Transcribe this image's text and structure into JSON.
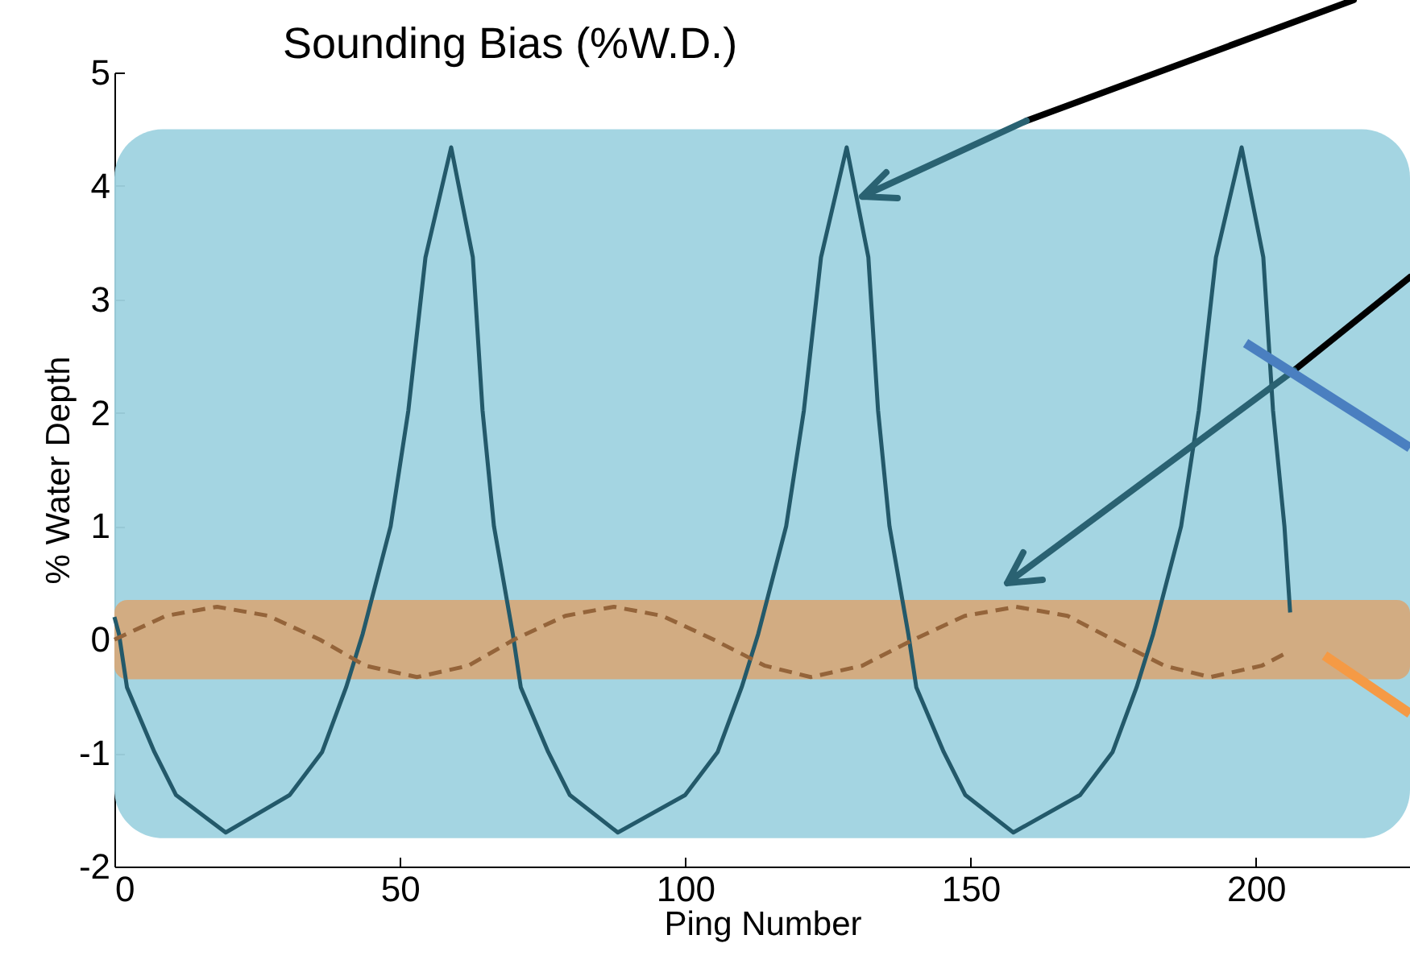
{
  "chart_data": {
    "type": "line",
    "title": "Sounding Bias (%W.D.)",
    "xlabel": "Ping Number",
    "ylabel": "% Water Depth",
    "xlim": [
      0,
      227
    ],
    "xticks": [
      0,
      50,
      100,
      150,
      200
    ],
    "ylim": [
      -2,
      5
    ],
    "yticks": [
      -2,
      -1,
      0,
      1,
      2,
      3,
      4,
      5
    ],
    "series": [
      {
        "color": "#23596a",
        "line_style": "solid",
        "x": [
          0,
          0.8,
          2.2,
          7,
          10.8,
          19.5,
          30.7,
          36.4,
          40.6,
          43.5,
          48.4,
          51.5,
          54.5,
          59,
          62.8,
          64.5,
          66.5,
          69.8,
          71.2,
          76,
          79.8,
          88.2,
          100,
          105.7,
          109.9,
          112.8,
          117.7,
          120.8,
          123.8,
          128.3,
          132.1,
          133.8,
          135.8,
          139.1,
          140.5,
          145.3,
          149.1,
          157.5,
          169.2,
          174.9,
          179.1,
          182,
          186.9,
          190,
          193,
          197.5,
          201.3,
          203,
          205,
          206
        ],
        "values": [
          0.2,
          0.05,
          -0.42,
          -0.99,
          -1.37,
          -1.7,
          -1.37,
          -0.99,
          -0.42,
          0.05,
          1.0,
          2.02,
          3.37,
          4.34,
          3.37,
          2.02,
          1.0,
          0.05,
          -0.42,
          -0.99,
          -1.37,
          -1.7,
          -1.37,
          -0.99,
          -0.42,
          0.05,
          1.0,
          2.02,
          3.37,
          4.34,
          3.37,
          2.02,
          1.0,
          0.05,
          -0.42,
          -0.99,
          -1.37,
          -1.7,
          -1.37,
          -0.99,
          -0.42,
          0.05,
          1.0,
          2.02,
          3.37,
          4.34,
          3.37,
          2.02,
          1.0,
          0.24
        ]
      },
      {
        "color": "#94643a",
        "line_style": "dashed",
        "x": [
          0,
          9,
          18,
          27,
          36,
          44,
          53,
          62,
          70,
          79,
          87.5,
          96,
          105,
          114,
          122,
          131,
          140,
          149,
          158,
          167,
          175,
          184,
          192,
          201,
          206
        ],
        "values": [
          0,
          0.21,
          0.29,
          0.21,
          0,
          -0.23,
          -0.33,
          -0.23,
          0,
          0.21,
          0.29,
          0.21,
          0,
          -0.23,
          -0.33,
          -0.23,
          0,
          0.21,
          0.29,
          0.21,
          0,
          -0.23,
          -0.33,
          -0.23,
          -0.1
        ]
      }
    ],
    "bands": [
      {
        "axis": "y",
        "from": -1.75,
        "to": 4.5,
        "color": "#9fd3e0"
      },
      {
        "axis": "y",
        "from": -0.35,
        "to": 0.35,
        "color": "#d5aa7c"
      }
    ]
  }
}
